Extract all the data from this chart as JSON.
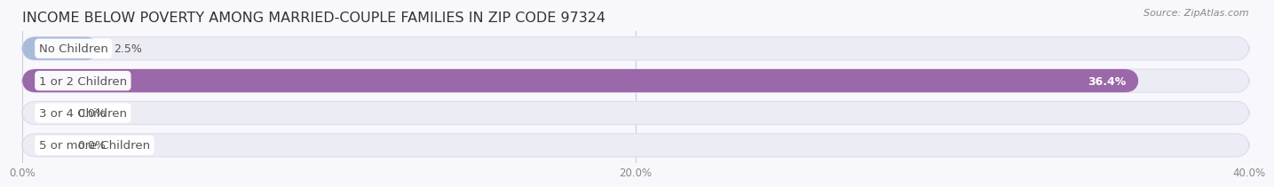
{
  "title": "INCOME BELOW POVERTY AMONG MARRIED-COUPLE FAMILIES IN ZIP CODE 97324",
  "source": "Source: ZipAtlas.com",
  "categories": [
    "No Children",
    "1 or 2 Children",
    "3 or 4 Children",
    "5 or more Children"
  ],
  "values": [
    2.5,
    36.4,
    0.0,
    0.0
  ],
  "bar_colors": [
    "#a8bcd8",
    "#9b68aa",
    "#44bbb0",
    "#9aa0d4"
  ],
  "bg_bar_color": "#ececf4",
  "bg_bar_edge": "#ddddee",
  "xlim": [
    0,
    40
  ],
  "xticks": [
    0.0,
    20.0,
    40.0
  ],
  "xtick_labels": [
    "0.0%",
    "20.0%",
    "40.0%"
  ],
  "bar_height": 0.72,
  "value_labels": [
    "2.5%",
    "36.4%",
    "0.0%",
    "0.0%"
  ],
  "title_fontsize": 11.5,
  "label_fontsize": 9.5,
  "value_fontsize": 9,
  "background_color": "#f8f8fc",
  "grid_color": "#ccccdd",
  "text_color": "#555555",
  "source_color": "#888888"
}
